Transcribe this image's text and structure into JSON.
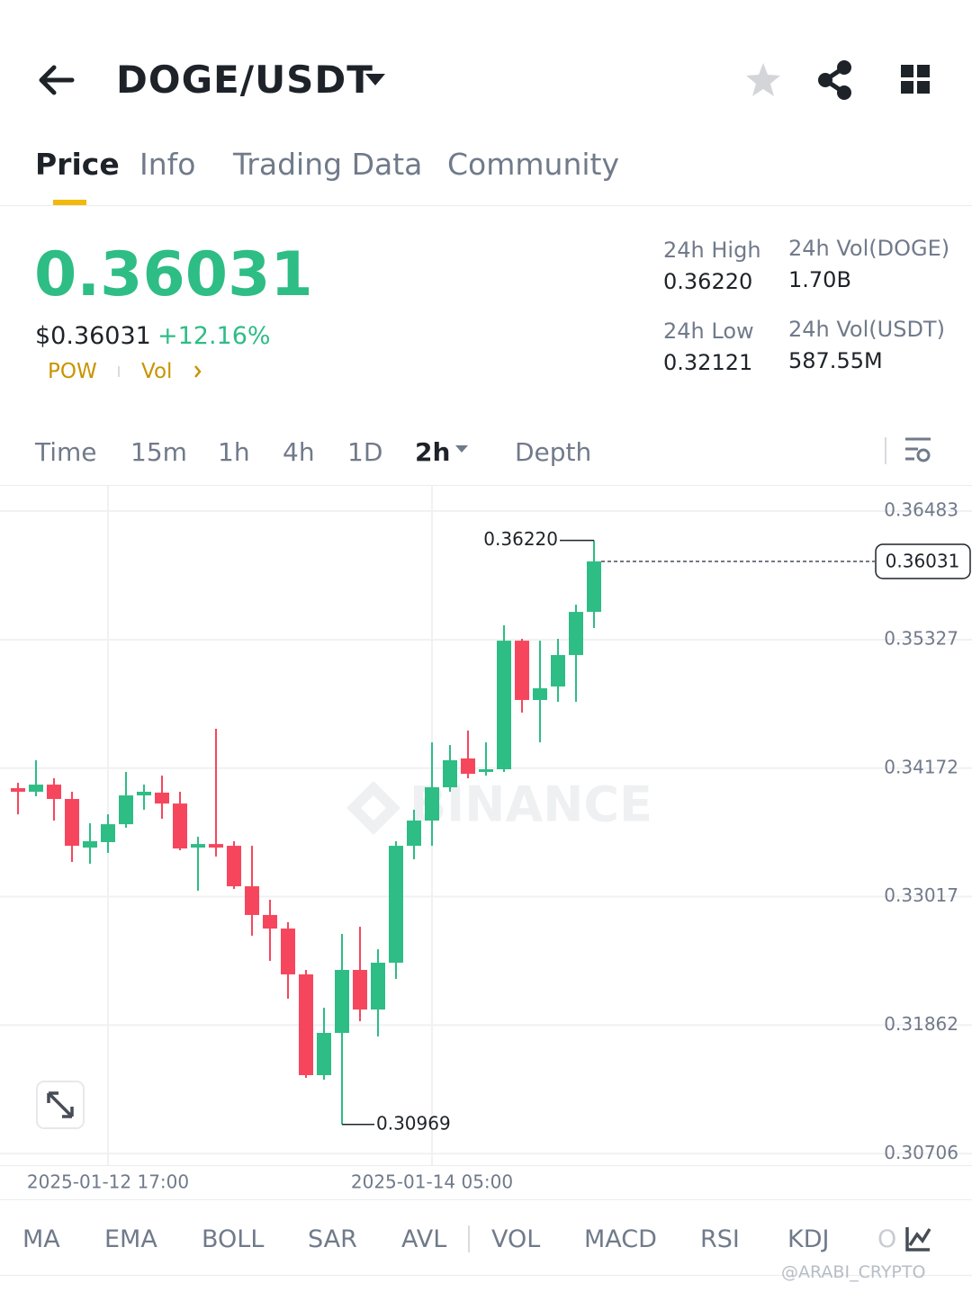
{
  "header": {
    "pair": "DOGE/USDT"
  },
  "tabs": [
    "Price",
    "Info",
    "Trading Data",
    "Community"
  ],
  "ticker": {
    "price": "0.36031",
    "usd_price": "$0.36031",
    "change": "+12.16%",
    "tags": [
      "POW",
      "Vol"
    ],
    "stats": [
      {
        "label": "24h High",
        "value": "0.36220"
      },
      {
        "label": "24h Vol(DOGE)",
        "value": "1.70B"
      },
      {
        "label": "24h Low",
        "value": "0.32121"
      },
      {
        "label": "24h Vol(USDT)",
        "value": "587.55M"
      }
    ]
  },
  "intervals": [
    "Time",
    "15m",
    "1h",
    "4h",
    "1D",
    "2h",
    "Depth"
  ],
  "chart_data": {
    "type": "candlestick",
    "watermark": "BINANCE",
    "categories": [
      null,
      null,
      null,
      null,
      null,
      "2025-01-12 17:00",
      null,
      null,
      null,
      null,
      null,
      null,
      null,
      null,
      null,
      null,
      null,
      null,
      null,
      null,
      null,
      null,
      null,
      "2025-01-14 05:00",
      null,
      null,
      null,
      null,
      null,
      null,
      null,
      null,
      null
    ],
    "open": [
      0.33992,
      0.3396,
      0.34024,
      0.33895,
      0.33458,
      0.33507,
      0.33668,
      0.33927,
      0.33952,
      0.33854,
      0.33458,
      0.3349,
      0.33474,
      0.3311,
      0.32852,
      0.3273,
      0.32318,
      0.31412,
      0.31792,
      0.32358,
      0.32002,
      0.32423,
      0.33474,
      0.33701,
      0.34,
      0.34259,
      0.34138,
      0.34162,
      0.35318,
      0.34785,
      0.34906,
      0.35189,
      0.35577
    ],
    "high": [
      0.3404,
      0.34243,
      0.34081,
      0.3396,
      0.33677,
      0.33757,
      0.34138,
      0.34024,
      0.34105,
      0.3396,
      0.33555,
      0.34526,
      0.33515,
      0.33474,
      0.32989,
      0.32787,
      0.32358,
      0.32018,
      0.32682,
      0.32746,
      0.32544,
      0.33515,
      0.33798,
      0.34404,
      0.3438,
      0.3451,
      0.34404,
      0.35456,
      0.35335,
      0.35318,
      0.35335,
      0.35642,
      0.3622
    ],
    "low": [
      0.33757,
      0.33919,
      0.33701,
      0.33329,
      0.33313,
      0.3341,
      0.33636,
      0.33798,
      0.33717,
      0.33434,
      0.3307,
      0.33377,
      0.33086,
      0.32666,
      0.32439,
      0.32099,
      0.31388,
      0.31371,
      0.30969,
      0.31897,
      0.3176,
      0.32277,
      0.33353,
      0.33474,
      0.3396,
      0.34081,
      0.34105,
      0.34138,
      0.34671,
      0.34404,
      0.34768,
      0.34768,
      0.35432
    ],
    "close": [
      0.3396,
      0.34024,
      0.33895,
      0.33474,
      0.33515,
      0.33668,
      0.33927,
      0.3396,
      0.33854,
      0.3345,
      0.3349,
      0.33458,
      0.3311,
      0.32852,
      0.3273,
      0.32318,
      0.31412,
      0.31792,
      0.32358,
      0.32002,
      0.32423,
      0.33474,
      0.33701,
      0.34,
      0.34243,
      0.34121,
      0.34162,
      0.35318,
      0.34785,
      0.3489,
      0.35189,
      0.35577,
      0.36031
    ],
    "up_color": "#2ebd85",
    "down_color": "#f6465d",
    "ylim": [
      0.30603,
      0.3671
    ],
    "yticks": [
      0.36483,
      0.35327,
      0.34172,
      0.33017,
      0.31862,
      0.30706
    ],
    "grid": true,
    "last_price": 0.36031,
    "high_marker": {
      "value": 0.3622,
      "label": "0.36220"
    },
    "low_marker": 0.30969
  },
  "indicators": [
    "MA",
    "EMA",
    "BOLL",
    "SAR",
    "AVL",
    "VOL",
    "MACD",
    "RSI",
    "KDJ",
    "O"
  ],
  "watermark": "@ARABI_CRYPTO"
}
